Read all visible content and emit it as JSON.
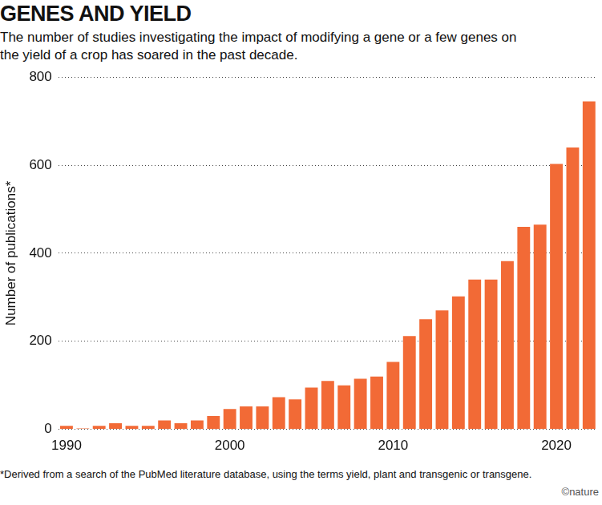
{
  "chart_data": {
    "type": "bar",
    "title": "GENES AND YIELD",
    "subtitle": "The number of studies investigating the impact of modifying a gene or a few genes on the yield of a crop has soared in the past decade.",
    "y_label": "Number of publications*",
    "annotations": [
      "*Derived from a search of the PubMed literature database, using the terms yield, plant and transgenic or transgene.",
      "©nature"
    ],
    "categories": [
      "1990",
      null,
      null,
      null,
      null,
      null,
      null,
      null,
      null,
      null,
      "2000",
      null,
      null,
      null,
      null,
      null,
      null,
      null,
      null,
      null,
      "2010",
      null,
      null,
      null,
      null,
      null,
      null,
      null,
      null,
      null,
      "2020",
      null,
      null
    ],
    "values": [
      8,
      2,
      8,
      14,
      8,
      8,
      20,
      14,
      20,
      30,
      46,
      52,
      52,
      73,
      68,
      95,
      110,
      100,
      115,
      120,
      153,
      212,
      250,
      270,
      302,
      340,
      340,
      382,
      460,
      465,
      603,
      640,
      745
    ],
    "color": "#f26a36",
    "ylim": [
      0,
      800
    ],
    "yticks": [
      0,
      200,
      400,
      600,
      800
    ],
    "grid": true
  }
}
